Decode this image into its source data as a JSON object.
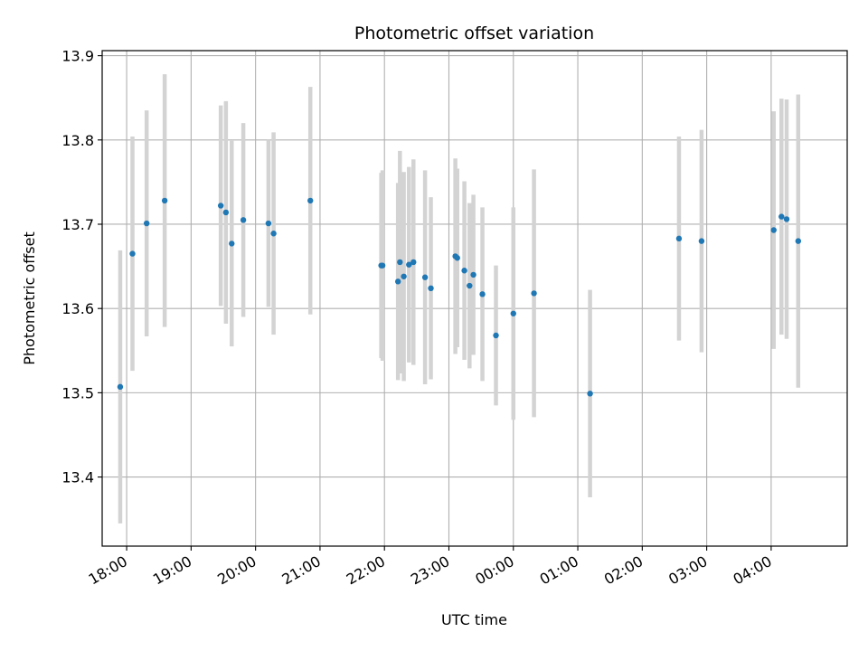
{
  "chart_data": {
    "type": "scatter",
    "title": "Photometric offset variation",
    "xlabel": "UTC time",
    "ylabel": "Photometric offset",
    "x_unit": "hours",
    "xlim": [
      17.62,
      5.18
    ],
    "ylim": [
      13.318,
      13.906
    ],
    "grid": true,
    "marker_color": "#1f77b4",
    "errorbar_color": "#d3d3d3",
    "x_ticks": [
      {
        "value": 18.0,
        "label": "18:00"
      },
      {
        "value": 19.0,
        "label": "19:00"
      },
      {
        "value": 20.0,
        "label": "20:00"
      },
      {
        "value": 21.0,
        "label": "21:00"
      },
      {
        "value": 22.0,
        "label": "22:00"
      },
      {
        "value": 23.0,
        "label": "23:00"
      },
      {
        "value": 0.0,
        "label": "00:00"
      },
      {
        "value": 1.0,
        "label": "01:00"
      },
      {
        "value": 2.0,
        "label": "02:00"
      },
      {
        "value": 3.0,
        "label": "03:00"
      },
      {
        "value": 4.0,
        "label": "04:00"
      }
    ],
    "y_ticks": [
      {
        "value": 13.4,
        "label": "13.4"
      },
      {
        "value": 13.5,
        "label": "13.5"
      },
      {
        "value": 13.6,
        "label": "13.6"
      },
      {
        "value": 13.7,
        "label": "13.7"
      },
      {
        "value": 13.8,
        "label": "13.8"
      },
      {
        "value": 13.9,
        "label": "13.9"
      }
    ],
    "points": [
      {
        "time": "17:54",
        "x": 17.9,
        "y": 13.507,
        "err": 0.162
      },
      {
        "time": "18:05",
        "x": 18.09,
        "y": 13.665,
        "err": 0.139
      },
      {
        "time": "18:18",
        "x": 18.31,
        "y": 13.701,
        "err": 0.134
      },
      {
        "time": "18:35",
        "x": 18.59,
        "y": 13.728,
        "err": 0.15
      },
      {
        "time": "19:28",
        "x": 19.46,
        "y": 13.722,
        "err": 0.119
      },
      {
        "time": "19:32",
        "x": 19.54,
        "y": 13.714,
        "err": 0.132
      },
      {
        "time": "19:38",
        "x": 19.63,
        "y": 13.677,
        "err": 0.122
      },
      {
        "time": "19:49",
        "x": 19.81,
        "y": 13.705,
        "err": 0.115
      },
      {
        "time": "20:12",
        "x": 20.2,
        "y": 13.701,
        "err": 0.099
      },
      {
        "time": "20:17",
        "x": 20.28,
        "y": 13.689,
        "err": 0.12
      },
      {
        "time": "20:51",
        "x": 20.85,
        "y": 13.728,
        "err": 0.135
      },
      {
        "time": "21:57",
        "x": 21.95,
        "y": 13.651,
        "err": 0.11
      },
      {
        "time": "21:58",
        "x": 21.97,
        "y": 13.651,
        "err": 0.113
      },
      {
        "time": "22:13",
        "x": 22.21,
        "y": 13.632,
        "err": 0.117
      },
      {
        "time": "22:14",
        "x": 22.24,
        "y": 13.655,
        "err": 0.132
      },
      {
        "time": "22:18",
        "x": 22.3,
        "y": 13.638,
        "err": 0.124
      },
      {
        "time": "22:23",
        "x": 22.38,
        "y": 13.652,
        "err": 0.116
      },
      {
        "time": "22:27",
        "x": 22.45,
        "y": 13.655,
        "err": 0.122
      },
      {
        "time": "22:38",
        "x": 22.63,
        "y": 13.637,
        "err": 0.127
      },
      {
        "time": "22:43",
        "x": 22.72,
        "y": 13.624,
        "err": 0.108
      },
      {
        "time": "23:06",
        "x": 23.1,
        "y": 13.662,
        "err": 0.116
      },
      {
        "time": "23:08",
        "x": 23.13,
        "y": 13.66,
        "err": 0.106
      },
      {
        "time": "23:14",
        "x": 23.24,
        "y": 13.645,
        "err": 0.106
      },
      {
        "time": "23:19",
        "x": 23.32,
        "y": 13.627,
        "err": 0.098
      },
      {
        "time": "23:23",
        "x": 23.38,
        "y": 13.64,
        "err": 0.095
      },
      {
        "time": "23:31",
        "x": 23.52,
        "y": 13.617,
        "err": 0.103
      },
      {
        "time": "23:44",
        "x": 23.73,
        "y": 13.568,
        "err": 0.083
      },
      {
        "time": "00:00",
        "x": 0.0,
        "y": 13.594,
        "err": 0.126
      },
      {
        "time": "00:19",
        "x": 0.32,
        "y": 13.618,
        "err": 0.147
      },
      {
        "time": "01:11",
        "x": 1.19,
        "y": 13.499,
        "err": 0.123
      },
      {
        "time": "02:34",
        "x": 2.57,
        "y": 13.683,
        "err": 0.121
      },
      {
        "time": "02:55",
        "x": 2.92,
        "y": 13.68,
        "err": 0.132
      },
      {
        "time": "04:02",
        "x": 4.04,
        "y": 13.693,
        "err": 0.141
      },
      {
        "time": "04:09",
        "x": 4.16,
        "y": 13.709,
        "err": 0.14
      },
      {
        "time": "04:14",
        "x": 4.24,
        "y": 13.706,
        "err": 0.142
      },
      {
        "time": "04:25",
        "x": 4.42,
        "y": 13.68,
        "err": 0.174
      }
    ]
  }
}
